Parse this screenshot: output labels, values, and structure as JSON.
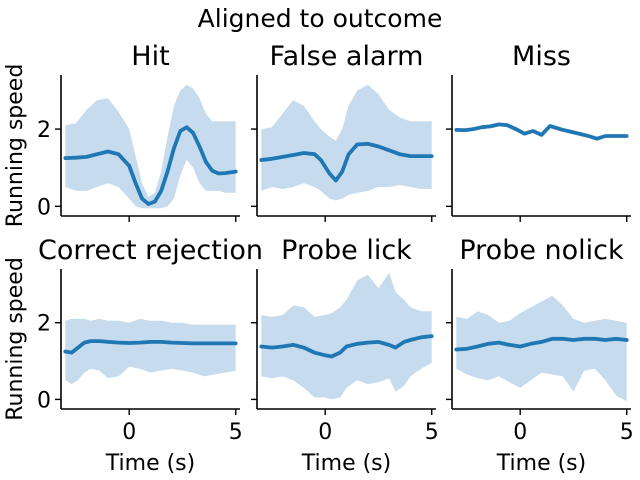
{
  "figure": {
    "suptitle": "Aligned to outcome",
    "ylabel": "Running speed",
    "xlabel": "Time (s)",
    "line_color": "#1f77b4",
    "band_color": "#c6dbee"
  },
  "chart_data": [
    {
      "type": "line",
      "title": "Hit",
      "xlabel": "Time (s)",
      "ylabel": "Running speed",
      "xlim": [
        -3.2,
        5.2
      ],
      "ylim": [
        -0.25,
        3.4
      ],
      "xticks": [
        0,
        5
      ],
      "yticks": [
        0,
        2
      ],
      "series": [
        {
          "x": [
            -3,
            -2.5,
            -2,
            -1.5,
            -1,
            -0.5,
            0,
            0.3,
            0.6,
            0.9,
            1.2,
            1.5,
            1.8,
            2.1,
            2.4,
            2.7,
            3.0,
            3.3,
            3.6,
            3.9,
            4.2,
            4.5,
            5
          ],
          "y": [
            1.25,
            1.26,
            1.28,
            1.35,
            1.42,
            1.35,
            1.05,
            0.6,
            0.2,
            0.06,
            0.12,
            0.4,
            0.9,
            1.5,
            1.95,
            2.05,
            1.9,
            1.55,
            1.15,
            0.92,
            0.85,
            0.86,
            0.9
          ],
          "lower": [
            0.5,
            0.4,
            0.4,
            0.5,
            0.6,
            0.5,
            0.2,
            0.0,
            -0.05,
            -0.05,
            -0.05,
            -0.05,
            0.0,
            0.2,
            0.8,
            1.2,
            1.0,
            0.6,
            0.4,
            0.4,
            0.4,
            0.35,
            0.35
          ],
          "upper": [
            2.1,
            2.15,
            2.5,
            2.75,
            2.8,
            2.45,
            2.0,
            1.3,
            0.6,
            0.25,
            0.35,
            0.9,
            1.8,
            2.6,
            3.0,
            3.15,
            3.05,
            2.8,
            2.4,
            2.2,
            2.2,
            2.2,
            2.2
          ]
        }
      ]
    },
    {
      "type": "line",
      "title": "False alarm",
      "xlabel": "Time (s)",
      "ylabel": "",
      "xlim": [
        -3.2,
        5.2
      ],
      "ylim": [
        -0.25,
        3.4
      ],
      "xticks": [
        0,
        5
      ],
      "yticks": [
        0,
        2
      ],
      "series": [
        {
          "x": [
            -3,
            -2.5,
            -2,
            -1.5,
            -1,
            -0.5,
            -0.2,
            0.2,
            0.5,
            0.8,
            1.1,
            1.5,
            2.0,
            2.5,
            3.0,
            3.5,
            4.0,
            4.5,
            5
          ],
          "y": [
            1.2,
            1.23,
            1.28,
            1.33,
            1.38,
            1.35,
            1.2,
            0.85,
            0.67,
            0.9,
            1.35,
            1.6,
            1.62,
            1.55,
            1.45,
            1.35,
            1.3,
            1.3,
            1.3
          ],
          "lower": [
            0.4,
            0.5,
            0.45,
            0.5,
            0.6,
            0.5,
            0.4,
            0.2,
            0.15,
            0.2,
            0.3,
            0.35,
            0.4,
            0.5,
            0.5,
            0.55,
            0.5,
            0.45,
            0.45
          ],
          "upper": [
            2.0,
            2.05,
            2.4,
            2.75,
            2.6,
            2.2,
            2.0,
            1.8,
            1.7,
            2.0,
            2.6,
            3.0,
            3.15,
            2.9,
            2.5,
            2.3,
            2.2,
            2.2,
            2.2
          ]
        }
      ]
    },
    {
      "type": "line",
      "title": "Miss",
      "xlabel": "Time (s)",
      "ylabel": "",
      "xlim": [
        -3.2,
        5.2
      ],
      "ylim": [
        -0.25,
        3.4
      ],
      "xticks": [
        0,
        5
      ],
      "yticks": [
        0,
        2
      ],
      "series": [
        {
          "x": [
            -3,
            -2.6,
            -2.2,
            -1.8,
            -1.4,
            -1.0,
            -0.6,
            -0.2,
            0.2,
            0.6,
            1.0,
            1.4,
            2.0,
            2.6,
            3.2,
            3.6,
            4.0,
            4.5,
            5
          ],
          "y": [
            1.98,
            1.97,
            2.0,
            2.05,
            2.07,
            2.12,
            2.1,
            2.0,
            1.88,
            1.95,
            1.85,
            2.08,
            1.98,
            1.9,
            1.82,
            1.75,
            1.82,
            1.82,
            1.82
          ],
          "lower": [],
          "upper": []
        }
      ]
    },
    {
      "type": "line",
      "title": "Correct rejection",
      "xlabel": "Time (s)",
      "ylabel": "Running speed",
      "xlim": [
        -3.2,
        5.2
      ],
      "ylim": [
        -0.25,
        3.4
      ],
      "xticks": [
        0,
        5
      ],
      "yticks": [
        0,
        2
      ],
      "series": [
        {
          "x": [
            -3,
            -2.7,
            -2.4,
            -2.1,
            -1.8,
            -1.4,
            -1.0,
            -0.5,
            0,
            0.5,
            1.0,
            1.5,
            2.0,
            2.5,
            3.0,
            3.5,
            4.0,
            4.5,
            5
          ],
          "y": [
            1.25,
            1.22,
            1.35,
            1.48,
            1.52,
            1.52,
            1.5,
            1.48,
            1.47,
            1.48,
            1.5,
            1.5,
            1.48,
            1.47,
            1.46,
            1.46,
            1.46,
            1.46,
            1.46
          ],
          "lower": [
            0.5,
            0.4,
            0.5,
            0.7,
            0.8,
            0.75,
            0.55,
            0.6,
            0.85,
            0.8,
            0.7,
            0.75,
            0.8,
            0.75,
            0.7,
            0.6,
            0.65,
            0.7,
            0.75
          ],
          "upper": [
            2.05,
            2.1,
            2.1,
            2.1,
            2.05,
            2.1,
            2.05,
            2.05,
            2.0,
            2.1,
            2.05,
            2.05,
            2.0,
            2.0,
            1.95,
            1.95,
            1.95,
            1.95,
            1.95
          ]
        }
      ]
    },
    {
      "type": "line",
      "title": "Probe lick",
      "xlabel": "Time (s)",
      "ylabel": "",
      "xlim": [
        -3.2,
        5.2
      ],
      "ylim": [
        -0.25,
        3.4
      ],
      "xticks": [
        0,
        5
      ],
      "yticks": [
        0,
        2
      ],
      "series": [
        {
          "x": [
            -3,
            -2.5,
            -2,
            -1.5,
            -1,
            -0.5,
            0,
            0.3,
            0.7,
            1.0,
            1.5,
            2.0,
            2.5,
            3.0,
            3.3,
            3.7,
            4.0,
            4.5,
            5
          ],
          "y": [
            1.38,
            1.35,
            1.38,
            1.42,
            1.35,
            1.22,
            1.15,
            1.12,
            1.22,
            1.38,
            1.45,
            1.48,
            1.5,
            1.42,
            1.35,
            1.5,
            1.55,
            1.62,
            1.65
          ],
          "lower": [
            0.6,
            0.55,
            0.6,
            0.5,
            0.3,
            0.05,
            0.05,
            0.0,
            0.05,
            0.3,
            0.5,
            0.4,
            0.45,
            0.55,
            0.2,
            0.35,
            0.6,
            0.8,
            0.95
          ],
          "upper": [
            2.2,
            2.15,
            2.2,
            2.45,
            2.4,
            2.15,
            2.2,
            2.25,
            2.4,
            2.6,
            3.1,
            3.25,
            2.9,
            3.3,
            2.8,
            2.6,
            2.4,
            2.3,
            2.3
          ]
        }
      ]
    },
    {
      "type": "line",
      "title": "Probe nolick",
      "xlabel": "Time (s)",
      "ylabel": "",
      "xlim": [
        -3.2,
        5.2
      ],
      "ylim": [
        -0.25,
        3.4
      ],
      "xticks": [
        0,
        5
      ],
      "yticks": [
        0,
        2
      ],
      "series": [
        {
          "x": [
            -3,
            -2.5,
            -2,
            -1.5,
            -1,
            -0.5,
            0,
            0.5,
            1.0,
            1.5,
            2.0,
            2.5,
            3.0,
            3.5,
            4.0,
            4.5,
            5
          ],
          "y": [
            1.3,
            1.32,
            1.38,
            1.45,
            1.48,
            1.42,
            1.38,
            1.45,
            1.5,
            1.58,
            1.58,
            1.55,
            1.58,
            1.58,
            1.55,
            1.58,
            1.55
          ],
          "lower": [
            0.8,
            0.65,
            0.55,
            0.5,
            0.6,
            0.45,
            0.3,
            0.5,
            0.7,
            0.65,
            0.6,
            0.2,
            0.75,
            0.8,
            0.5,
            0.1,
            -0.05
          ],
          "upper": [
            2.15,
            2.1,
            2.3,
            2.2,
            2.0,
            2.05,
            2.25,
            2.4,
            2.55,
            2.7,
            2.45,
            2.1,
            2.0,
            2.05,
            2.1,
            2.05,
            2.0
          ]
        }
      ]
    }
  ]
}
